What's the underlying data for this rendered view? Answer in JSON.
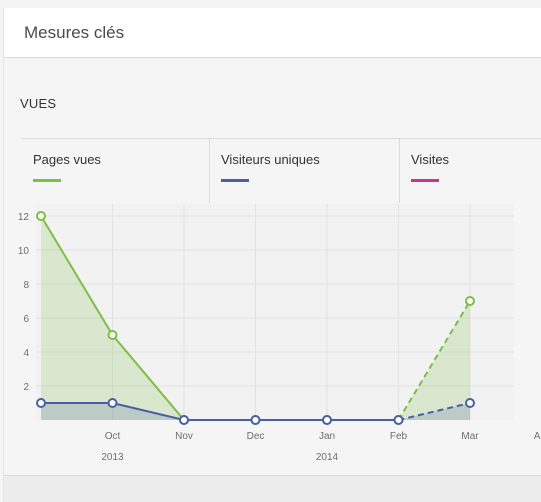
{
  "panel": {
    "title": "Mesures clés"
  },
  "section": {
    "label": "VUES"
  },
  "legend": [
    {
      "label": "Pages vues",
      "color": "#7cbf45"
    },
    {
      "label": "Visiteurs uniques",
      "color": "#4a5fa6"
    },
    {
      "label": "Visites",
      "color": "#d0338b"
    }
  ],
  "chart_data": {
    "type": "line",
    "x_ticks": [
      "Oct",
      "Nov",
      "Dec",
      "Jan",
      "Feb",
      "Mar",
      "Apr"
    ],
    "x_subticks": [
      "2013",
      "2014"
    ],
    "y_ticks": [
      2,
      4,
      6,
      8,
      10,
      12
    ],
    "ylim": [
      0,
      12
    ],
    "grid": true,
    "series": [
      {
        "name": "Pages vues",
        "color": "#7cbf45",
        "points": [
          {
            "x": "2013-09-01",
            "y": 12
          },
          {
            "x": "2013-10-01",
            "y": 5
          },
          {
            "x": "2013-11-01",
            "y": 0
          },
          {
            "x": "2013-12-01",
            "y": 0
          },
          {
            "x": "2014-01-01",
            "y": 0
          },
          {
            "x": "2014-02-01",
            "y": 0
          },
          {
            "x": "2014-03-01",
            "y": 7
          }
        ],
        "dashed_from": "2014-02-01"
      },
      {
        "name": "Visiteurs uniques",
        "color": "#4a5fa6",
        "points": [
          {
            "x": "2013-09-01",
            "y": 1
          },
          {
            "x": "2013-10-01",
            "y": 1
          },
          {
            "x": "2013-11-01",
            "y": 0
          },
          {
            "x": "2013-12-01",
            "y": 0
          },
          {
            "x": "2014-01-01",
            "y": 0
          },
          {
            "x": "2014-02-01",
            "y": 0
          },
          {
            "x": "2014-03-01",
            "y": 1
          }
        ],
        "dashed_from": "2014-02-01"
      }
    ]
  }
}
